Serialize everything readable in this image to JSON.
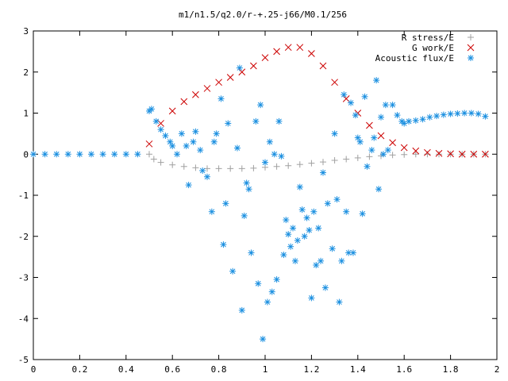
{
  "chart_data": {
    "type": "scatter",
    "title": "m1/n1.5/q2.0/r-+.25-j66/M0.1/256",
    "xlabel": "",
    "ylabel": "",
    "xlim": [
      0,
      2
    ],
    "ylim": [
      -5,
      3
    ],
    "x_ticks": [
      0,
      0.2,
      0.4,
      0.6,
      0.8,
      1,
      1.2,
      1.4,
      1.6,
      1.8,
      2
    ],
    "x_tick_labels": [
      "0",
      "0.2",
      "0.4",
      "0.6",
      "0.8",
      "1",
      "1.2",
      "1.4",
      "1.6",
      "1.8",
      "2"
    ],
    "y_ticks": [
      -5,
      -4,
      -3,
      -2,
      -1,
      0,
      1,
      2,
      3
    ],
    "y_tick_labels": [
      "-5",
      "-4",
      "-3",
      "-2",
      "-1",
      "0",
      "1",
      "2",
      "3"
    ],
    "grid": false,
    "legend_position": "top-right",
    "series": [
      {
        "name": "R stress/E",
        "marker": "plus",
        "color": "#a0a0a0",
        "points": [
          [
            0.5,
            0.0
          ],
          [
            0.52,
            -0.12
          ],
          [
            0.55,
            -0.2
          ],
          [
            0.6,
            -0.26
          ],
          [
            0.65,
            -0.3
          ],
          [
            0.7,
            -0.33
          ],
          [
            0.75,
            -0.35
          ],
          [
            0.8,
            -0.35
          ],
          [
            0.85,
            -0.35
          ],
          [
            0.9,
            -0.35
          ],
          [
            0.95,
            -0.34
          ],
          [
            1.0,
            -0.32
          ],
          [
            1.05,
            -0.3
          ],
          [
            1.1,
            -0.28
          ],
          [
            1.15,
            -0.25
          ],
          [
            1.2,
            -0.22
          ],
          [
            1.25,
            -0.19
          ],
          [
            1.3,
            -0.15
          ],
          [
            1.35,
            -0.12
          ],
          [
            1.4,
            -0.09
          ],
          [
            1.45,
            -0.06
          ],
          [
            1.5,
            -0.04
          ],
          [
            1.55,
            -0.02
          ],
          [
            1.6,
            -0.01
          ],
          [
            1.65,
            0.0
          ],
          [
            1.7,
            0.0
          ],
          [
            1.75,
            0.0
          ],
          [
            1.8,
            0.0
          ],
          [
            1.85,
            0.0
          ],
          [
            1.9,
            0.0
          ],
          [
            1.95,
            0.0
          ]
        ]
      },
      {
        "name": "G work/E",
        "marker": "cross",
        "color": "#cc0000",
        "points": [
          [
            0.5,
            0.25
          ],
          [
            0.55,
            0.75
          ],
          [
            0.6,
            1.05
          ],
          [
            0.65,
            1.28
          ],
          [
            0.7,
            1.45
          ],
          [
            0.75,
            1.6
          ],
          [
            0.8,
            1.75
          ],
          [
            0.85,
            1.87
          ],
          [
            0.9,
            2.0
          ],
          [
            0.95,
            2.15
          ],
          [
            1.0,
            2.35
          ],
          [
            1.05,
            2.5
          ],
          [
            1.1,
            2.6
          ],
          [
            1.15,
            2.6
          ],
          [
            1.2,
            2.45
          ],
          [
            1.25,
            2.15
          ],
          [
            1.3,
            1.75
          ],
          [
            1.35,
            1.35
          ],
          [
            1.4,
            1.0
          ],
          [
            1.45,
            0.7
          ],
          [
            1.5,
            0.45
          ],
          [
            1.55,
            0.28
          ],
          [
            1.6,
            0.16
          ],
          [
            1.65,
            0.08
          ],
          [
            1.7,
            0.04
          ],
          [
            1.75,
            0.02
          ],
          [
            1.8,
            0.01
          ],
          [
            1.85,
            0.0
          ],
          [
            1.9,
            0.0
          ],
          [
            1.95,
            0.0
          ]
        ]
      },
      {
        "name": "Acoustic flux/E",
        "marker": "star",
        "color": "#1a8fe0",
        "points": [
          [
            0.0,
            0.0
          ],
          [
            0.05,
            0.0
          ],
          [
            0.1,
            0.0
          ],
          [
            0.15,
            0.0
          ],
          [
            0.2,
            0.0
          ],
          [
            0.25,
            0.0
          ],
          [
            0.3,
            0.0
          ],
          [
            0.35,
            0.0
          ],
          [
            0.4,
            0.0
          ],
          [
            0.45,
            0.0
          ],
          [
            0.5,
            1.05
          ],
          [
            0.51,
            1.1
          ],
          [
            0.53,
            0.8
          ],
          [
            0.55,
            0.6
          ],
          [
            0.57,
            0.45
          ],
          [
            0.59,
            0.3
          ],
          [
            0.6,
            0.2
          ],
          [
            0.62,
            0.0
          ],
          [
            0.64,
            0.5
          ],
          [
            0.66,
            0.2
          ],
          [
            0.67,
            -0.75
          ],
          [
            0.69,
            0.3
          ],
          [
            0.7,
            0.55
          ],
          [
            0.72,
            0.1
          ],
          [
            0.73,
            -0.4
          ],
          [
            0.75,
            -0.55
          ],
          [
            0.77,
            -1.4
          ],
          [
            0.78,
            0.3
          ],
          [
            0.79,
            0.5
          ],
          [
            0.81,
            1.35
          ],
          [
            0.82,
            -2.2
          ],
          [
            0.83,
            -1.2
          ],
          [
            0.84,
            0.75
          ],
          [
            0.86,
            -2.85
          ],
          [
            0.88,
            0.15
          ],
          [
            0.89,
            2.1
          ],
          [
            0.9,
            -3.8
          ],
          [
            0.91,
            -1.5
          ],
          [
            0.92,
            -0.7
          ],
          [
            0.93,
            -0.85
          ],
          [
            0.94,
            -2.4
          ],
          [
            0.96,
            0.8
          ],
          [
            0.97,
            -3.15
          ],
          [
            0.98,
            1.2
          ],
          [
            0.99,
            -4.5
          ],
          [
            1.0,
            -0.2
          ],
          [
            1.01,
            -3.6
          ],
          [
            1.02,
            0.3
          ],
          [
            1.03,
            -3.35
          ],
          [
            1.04,
            0.0
          ],
          [
            1.05,
            -3.05
          ],
          [
            1.06,
            0.8
          ],
          [
            1.07,
            -0.05
          ],
          [
            1.08,
            -2.45
          ],
          [
            1.09,
            -1.6
          ],
          [
            1.1,
            -1.95
          ],
          [
            1.11,
            -2.25
          ],
          [
            1.12,
            -1.8
          ],
          [
            1.13,
            -2.6
          ],
          [
            1.14,
            -2.1
          ],
          [
            1.15,
            -0.8
          ],
          [
            1.16,
            -1.35
          ],
          [
            1.17,
            -2.0
          ],
          [
            1.18,
            -1.55
          ],
          [
            1.19,
            -1.85
          ],
          [
            1.2,
            -3.5
          ],
          [
            1.21,
            -1.4
          ],
          [
            1.22,
            -2.7
          ],
          [
            1.23,
            -1.8
          ],
          [
            1.24,
            -2.6
          ],
          [
            1.25,
            -0.45
          ],
          [
            1.26,
            -3.25
          ],
          [
            1.27,
            -1.2
          ],
          [
            1.29,
            -2.3
          ],
          [
            1.3,
            0.5
          ],
          [
            1.31,
            -1.1
          ],
          [
            1.32,
            -3.6
          ],
          [
            1.33,
            -2.6
          ],
          [
            1.34,
            1.45
          ],
          [
            1.35,
            -1.4
          ],
          [
            1.36,
            -2.4
          ],
          [
            1.37,
            1.25
          ],
          [
            1.38,
            -2.4
          ],
          [
            1.39,
            0.95
          ],
          [
            1.4,
            0.4
          ],
          [
            1.41,
            0.3
          ],
          [
            1.42,
            -1.45
          ],
          [
            1.43,
            1.4
          ],
          [
            1.44,
            -0.3
          ],
          [
            1.46,
            0.1
          ],
          [
            1.47,
            0.4
          ],
          [
            1.48,
            1.8
          ],
          [
            1.49,
            -0.85
          ],
          [
            1.5,
            0.9
          ],
          [
            1.51,
            0.0
          ],
          [
            1.52,
            1.2
          ],
          [
            1.53,
            0.1
          ],
          [
            1.55,
            1.2
          ],
          [
            1.57,
            0.95
          ],
          [
            1.59,
            0.8
          ],
          [
            1.6,
            0.75
          ],
          [
            1.62,
            0.8
          ],
          [
            1.65,
            0.82
          ],
          [
            1.68,
            0.85
          ],
          [
            1.71,
            0.9
          ],
          [
            1.74,
            0.93
          ],
          [
            1.77,
            0.96
          ],
          [
            1.8,
            0.98
          ],
          [
            1.83,
            0.99
          ],
          [
            1.86,
            1.0
          ],
          [
            1.89,
            1.0
          ],
          [
            1.92,
            0.98
          ],
          [
            1.95,
            0.92
          ]
        ]
      }
    ]
  }
}
